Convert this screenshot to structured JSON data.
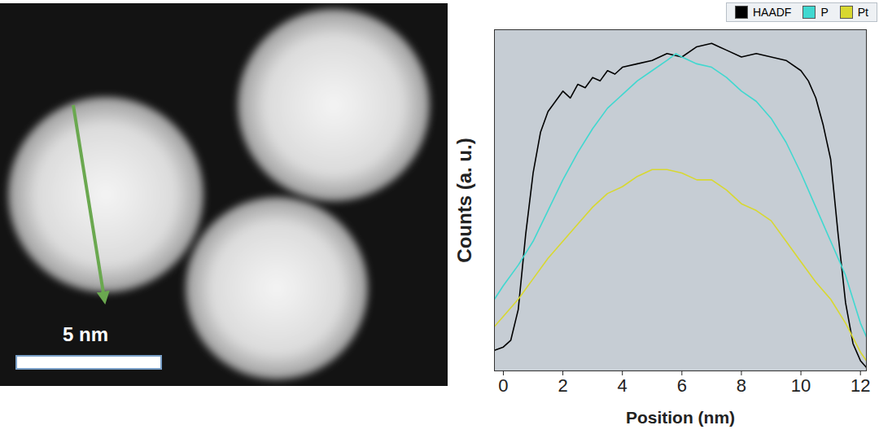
{
  "image": {
    "scale_bar": "5 nm"
  },
  "chart_data": {
    "type": "line",
    "xlabel": "Position (nm)",
    "ylabel": "Counts (a. u.)",
    "xlim": [
      -0.3,
      12.2
    ],
    "xticks": [
      0,
      2,
      4,
      6,
      8,
      10,
      12
    ],
    "ylim": [
      0,
      100
    ],
    "yticks": [],
    "tick_labels": "x",
    "grid": false,
    "legend": "top",
    "series": [
      {
        "name": "HAADF",
        "color": "#000000",
        "x": [
          -0.3,
          0,
          0.25,
          0.5,
          0.75,
          1,
          1.25,
          1.5,
          1.75,
          2,
          2.25,
          2.5,
          2.75,
          3,
          3.25,
          3.5,
          3.75,
          4,
          4.5,
          5,
          5.5,
          6,
          6.5,
          7,
          7.25,
          7.5,
          8,
          8.5,
          9,
          9.5,
          10,
          10.25,
          10.5,
          10.75,
          11,
          11.25,
          11.5,
          11.75,
          12,
          12.2
        ],
        "values": [
          6,
          7,
          9,
          18,
          40,
          58,
          70,
          76,
          79,
          82,
          80,
          84,
          83,
          86,
          85,
          88,
          87,
          89,
          90,
          91,
          93,
          92,
          95,
          96,
          95,
          94,
          92,
          93,
          92,
          91,
          88,
          85,
          80,
          72,
          62,
          40,
          20,
          8,
          3,
          1
        ]
      },
      {
        "name": "P",
        "color": "#40d8d0",
        "x": [
          -0.3,
          0,
          0.5,
          1,
          1.5,
          2,
          2.5,
          3,
          3.5,
          4,
          4.5,
          5,
          5.5,
          5.8,
          6,
          6.5,
          7,
          7.5,
          8,
          8.5,
          9,
          9.5,
          10,
          10.5,
          11,
          11.5,
          12,
          12.2
        ],
        "values": [
          21,
          25,
          31,
          38,
          47,
          56,
          64,
          71,
          77,
          81,
          85,
          88,
          91,
          93,
          92,
          90,
          89,
          86,
          82,
          79,
          74,
          67,
          58,
          48,
          38,
          28,
          14,
          10
        ]
      },
      {
        "name": "Pt",
        "color": "#d8d830",
        "x": [
          -0.3,
          0,
          0.5,
          1,
          1.5,
          2,
          2.5,
          3,
          3.5,
          4,
          4.5,
          5,
          5.5,
          6,
          6.5,
          7,
          7.5,
          8,
          8.5,
          9,
          9.5,
          10,
          10.5,
          11,
          11.5,
          12,
          12.2
        ],
        "values": [
          13,
          16,
          21,
          27,
          33,
          38,
          43,
          48,
          52,
          54,
          57,
          59,
          59,
          58,
          56,
          56,
          53,
          49,
          47,
          44,
          38,
          32,
          26,
          21,
          14,
          5.5,
          3
        ]
      }
    ]
  }
}
